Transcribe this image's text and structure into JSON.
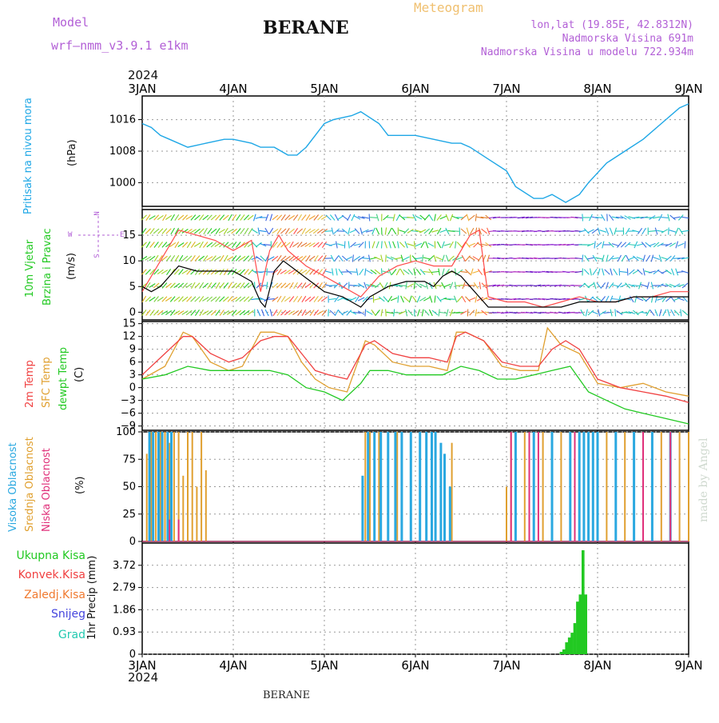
{
  "header": {
    "model_label": "Model",
    "model_name": "wrf—nmm_v3.9.1  e1km",
    "title": "BERANE",
    "product": "Meteogram",
    "coords": "lon,lat (19.85E, 42.8312N)",
    "elevation": "Nadmorska Visina 691m",
    "model_elevation": "Nadmorska Visina u modelu 722.934m",
    "footer_title": "BERANE",
    "credit": "made by Angel"
  },
  "colors": {
    "pressure": "#1ea7e6",
    "wind_speed": "#000000",
    "wind_gust": "#ff4b4b",
    "temp_2m": "#f04040",
    "temp_sfc": "#e0a030",
    "dewpoint": "#22c922",
    "cloud_high": "#2aa8e0",
    "cloud_mid": "#e0a030",
    "cloud_low": "#e0307a",
    "precip_total": "#22c922",
    "precip_conv": "#f04040",
    "precip_strat": "#f07a30",
    "snow": "#4444dd",
    "hail": "#22c9b0",
    "model_label": "#b25fd6"
  },
  "chart_data": [
    {
      "type": "line",
      "title": "",
      "ylabel": [
        "Pritisak na nivou mora",
        "(hPa)"
      ],
      "x_start_year": "2024",
      "x_ticks": [
        "3JAN",
        "4JAN",
        "5JAN",
        "6JAN",
        "7JAN",
        "8JAN",
        "9JAN"
      ],
      "ylim": [
        994,
        1022
      ],
      "y_ticks": [
        1000,
        1008,
        1016
      ],
      "grid": true,
      "series": [
        {
          "key": "pressure",
          "x": [
            0,
            0.1,
            0.2,
            0.3,
            0.5,
            0.7,
            0.9,
            1.0,
            1.2,
            1.3,
            1.45,
            1.6,
            1.7,
            1.8,
            1.9,
            2.0,
            2.1,
            2.3,
            2.4,
            2.6,
            2.7,
            2.8,
            3.0,
            3.2,
            3.4,
            3.5,
            3.6,
            3.8,
            4.0,
            4.1,
            4.3,
            4.4,
            4.5,
            4.65,
            4.8,
            4.9,
            5.1,
            5.3,
            5.5,
            5.7,
            5.9,
            6.0
          ],
          "values": [
            1015,
            1014,
            1012,
            1011,
            1009,
            1010,
            1011,
            1011,
            1010,
            1009,
            1009,
            1007,
            1007,
            1009,
            1012,
            1015,
            1016,
            1017,
            1018,
            1015,
            1012,
            1012,
            1012,
            1011,
            1010,
            1010,
            1009,
            1006,
            1003,
            999,
            996,
            996,
            997,
            995,
            997,
            1000,
            1005,
            1008,
            1011,
            1015,
            1019,
            1020
          ]
        }
      ]
    },
    {
      "type": "line",
      "title": "",
      "ylabel": [
        "10m Vjetar",
        "Brzina i Pravac",
        "(m/s)"
      ],
      "compass": [
        "N",
        "W",
        "E",
        "S"
      ],
      "ylim": [
        -1.5,
        20
      ],
      "y_ticks": [
        0,
        5,
        10,
        15
      ],
      "grid": true,
      "series": [
        {
          "key": "wind_speed",
          "x": [
            0,
            0.1,
            0.2,
            0.3,
            0.4,
            0.6,
            0.8,
            1.0,
            1.1,
            1.2,
            1.3,
            1.35,
            1.45,
            1.55,
            1.7,
            1.85,
            2.0,
            2.2,
            2.3,
            2.4,
            2.5,
            2.7,
            2.9,
            3.0,
            3.1,
            3.2,
            3.3,
            3.4,
            3.5,
            3.6,
            3.7,
            3.8,
            4.0,
            4.2,
            4.4,
            4.6,
            4.8,
            5.0,
            5.2,
            5.4,
            5.6,
            5.8,
            6.0
          ],
          "values": [
            5,
            4,
            5,
            7,
            9,
            8,
            8,
            8,
            7,
            6,
            2,
            1,
            8,
            10,
            8,
            6,
            4,
            3,
            2,
            1,
            3,
            5,
            6,
            6,
            6,
            5,
            7,
            8,
            7,
            5,
            3,
            1,
            1,
            1,
            1,
            1,
            2,
            2,
            2,
            3,
            3,
            3,
            3
          ]
        },
        {
          "key": "wind_gust",
          "x": [
            0,
            0.2,
            0.4,
            0.6,
            0.8,
            1.0,
            1.2,
            1.3,
            1.4,
            1.5,
            1.6,
            1.8,
            2.0,
            2.2,
            2.4,
            2.6,
            2.8,
            3.0,
            3.2,
            3.4,
            3.6,
            3.7,
            3.8,
            4.0,
            4.2,
            4.4,
            4.6,
            4.8,
            5.0,
            5.2,
            5.4,
            5.6,
            5.8,
            6.0
          ],
          "values": [
            4,
            10,
            16,
            15,
            14,
            12,
            14,
            4,
            12,
            15,
            12,
            9,
            7,
            5,
            3,
            7,
            9,
            10,
            9,
            9,
            15,
            16,
            3,
            2,
            2,
            1,
            2,
            3,
            2,
            2,
            3,
            3,
            4,
            4
          ]
        }
      ]
    },
    {
      "type": "line",
      "title": "",
      "ylabel": [
        "2m Temp",
        "SFC Temp",
        "dewpt Temp",
        "(C)"
      ],
      "ylim": [
        -10,
        15.5
      ],
      "y_ticks": [
        -9,
        -6,
        -3,
        0,
        3,
        6,
        9,
        12,
        15
      ],
      "grid": true,
      "series": [
        {
          "key": "temp_2m",
          "x": [
            0,
            0.25,
            0.45,
            0.55,
            0.75,
            0.95,
            1.1,
            1.3,
            1.45,
            1.6,
            1.75,
            1.9,
            2.05,
            2.25,
            2.45,
            2.55,
            2.75,
            2.95,
            3.15,
            3.35,
            3.45,
            3.55,
            3.75,
            3.95,
            4.15,
            4.35,
            4.5,
            4.65,
            4.8,
            5.0,
            5.25,
            5.5,
            5.75,
            6.0
          ],
          "values": [
            3,
            8,
            12,
            12,
            8,
            6,
            7,
            11,
            12,
            12,
            8,
            4,
            3,
            2,
            10,
            11,
            8,
            7,
            7,
            6,
            12,
            13,
            11,
            6,
            5,
            5,
            9,
            11,
            9,
            2,
            0,
            -1,
            -2,
            -3.5
          ]
        },
        {
          "key": "temp_sfc",
          "x": [
            0,
            0.25,
            0.45,
            0.55,
            0.75,
            0.95,
            1.1,
            1.3,
            1.45,
            1.6,
            1.75,
            1.9,
            2.05,
            2.25,
            2.45,
            2.55,
            2.75,
            2.95,
            3.15,
            3.35,
            3.45,
            3.55,
            3.75,
            3.95,
            4.15,
            4.35,
            4.45,
            4.6,
            4.8,
            5.0,
            5.25,
            5.5,
            5.75,
            6.0
          ],
          "values": [
            2,
            5,
            13,
            12,
            6,
            4,
            5,
            13,
            13,
            12,
            6,
            2,
            0,
            -1,
            11,
            10,
            6,
            5,
            5,
            4,
            13,
            13,
            11,
            5,
            4,
            4,
            14,
            10,
            8,
            1,
            0,
            1,
            -1,
            -2
          ]
        },
        {
          "key": "dewpoint",
          "x": [
            0,
            0.25,
            0.5,
            0.75,
            1.0,
            1.2,
            1.4,
            1.6,
            1.8,
            2.0,
            2.2,
            2.4,
            2.5,
            2.7,
            2.9,
            3.1,
            3.3,
            3.5,
            3.7,
            3.9,
            4.1,
            4.3,
            4.5,
            4.7,
            4.9,
            5.1,
            5.3,
            5.5,
            5.7,
            6.0
          ],
          "values": [
            2,
            3,
            5,
            4,
            4,
            4,
            4,
            3,
            0,
            -1,
            -3,
            1,
            4,
            4,
            3,
            3,
            3,
            5,
            4,
            2,
            2,
            3,
            4,
            5,
            -1,
            -3,
            -5,
            -6,
            -7,
            -8.5
          ]
        }
      ]
    },
    {
      "type": "bar",
      "title": "",
      "ylabel": [
        "Visoka Oblacnost",
        "Srednja Oblacnost",
        "Niska Oblacnost",
        "(%)"
      ],
      "ylim": [
        0,
        100
      ],
      "y_ticks": [
        0,
        25,
        50,
        75,
        100
      ],
      "grid": true,
      "series": [
        {
          "key": "cloud_mid",
          "name": "Srednja Oblacnost",
          "x": [
            0.05,
            0.1,
            0.15,
            0.2,
            0.25,
            0.3,
            0.35,
            0.4,
            0.45,
            0.5,
            0.55,
            0.6,
            0.65,
            0.7,
            2.45,
            2.5,
            2.55,
            2.6,
            2.7,
            2.8,
            3.4,
            4.0,
            4.05,
            4.1,
            4.2,
            4.3,
            4.4,
            4.5,
            4.6,
            4.7,
            4.8,
            4.9,
            5.0,
            5.1,
            5.2,
            5.3,
            5.4,
            5.5,
            5.6,
            5.7,
            5.8,
            5.9,
            6.0
          ],
          "values": [
            80,
            100,
            100,
            100,
            100,
            90,
            100,
            100,
            60,
            100,
            100,
            50,
            100,
            65,
            100,
            100,
            100,
            100,
            100,
            100,
            90,
            50,
            100,
            100,
            100,
            100,
            100,
            100,
            100,
            100,
            100,
            100,
            100,
            100,
            100,
            100,
            100,
            100,
            100,
            100,
            100,
            100,
            100
          ]
        },
        {
          "key": "cloud_high",
          "name": "Visoka Oblacnost",
          "x": [
            0.08,
            0.12,
            0.18,
            0.22,
            0.28,
            0.32,
            2.42,
            2.48,
            2.55,
            2.62,
            2.7,
            2.78,
            2.85,
            2.95,
            3.05,
            3.12,
            3.18,
            3.22,
            3.28,
            3.32,
            3.38,
            4.1,
            4.3,
            4.5,
            4.7,
            4.8,
            4.85,
            4.9,
            4.95,
            5.0,
            5.2,
            5.4,
            5.6,
            5.8
          ],
          "values": [
            100,
            100,
            100,
            100,
            100,
            100,
            60,
            100,
            100,
            100,
            100,
            100,
            100,
            100,
            100,
            100,
            100,
            100,
            90,
            80,
            50,
            100,
            100,
            100,
            100,
            100,
            100,
            100,
            100,
            100,
            100,
            100,
            100,
            100
          ]
        },
        {
          "key": "cloud_low",
          "name": "Niska Oblacnost",
          "x": [
            0.3,
            0.4,
            4.05,
            4.25,
            4.35,
            4.75,
            5.5,
            5.8
          ],
          "values": [
            20,
            20,
            100,
            100,
            100,
            100,
            100,
            100
          ]
        }
      ]
    },
    {
      "type": "bar",
      "title": "",
      "ylabel": [
        "1hr Precip (mm)"
      ],
      "legend": [
        "Ukupna Kisa",
        "Konvek.Kisa",
        "Zaledj.Kisa",
        "Snijeg",
        "Grad"
      ],
      "ylim": [
        0,
        4.65
      ],
      "y_ticks": [
        "0",
        "0.93",
        "1.86",
        "2.79",
        "3.72"
      ],
      "grid": true,
      "series": [
        {
          "key": "precip_total",
          "name": "Ukupna Kisa",
          "x": [
            4.6,
            4.63,
            4.66,
            4.69,
            4.72,
            4.75,
            4.78,
            4.81,
            4.84,
            4.87
          ],
          "values": [
            0.1,
            0.2,
            0.5,
            0.7,
            0.9,
            1.3,
            2.2,
            2.5,
            4.35,
            2.5
          ]
        }
      ]
    }
  ]
}
